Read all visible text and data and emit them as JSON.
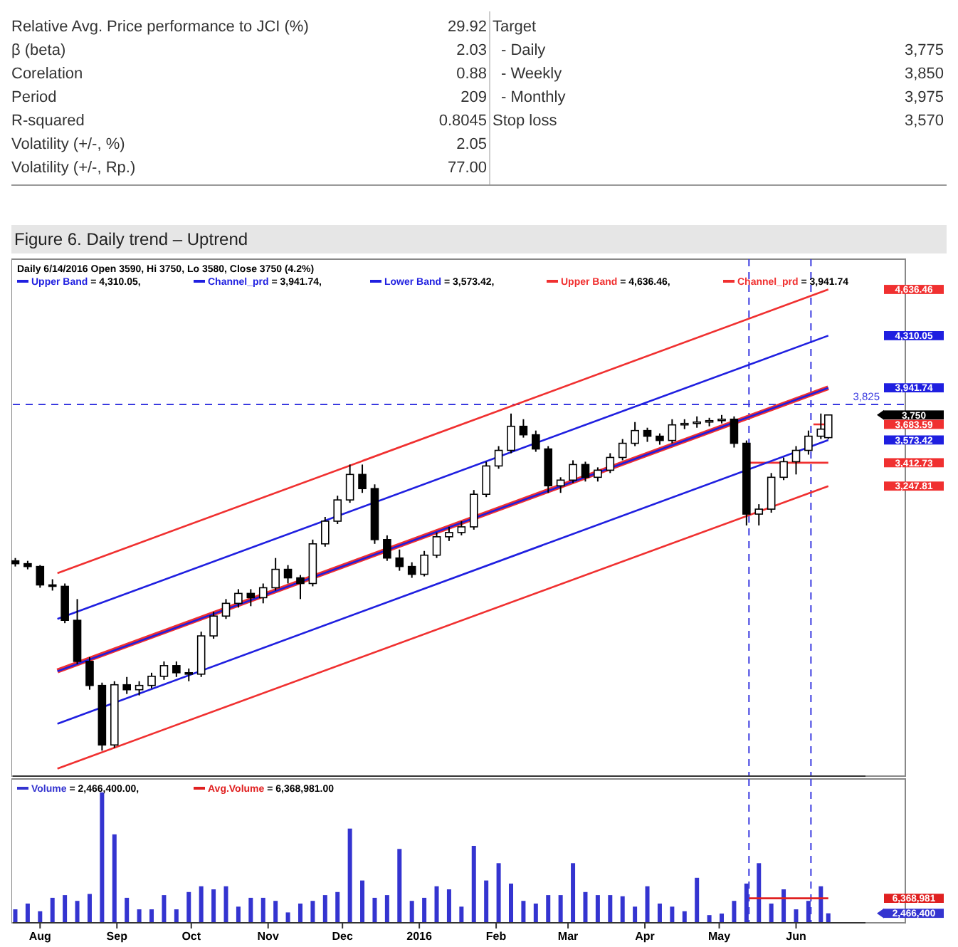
{
  "chart_data": [
    {
      "type": "other",
      "annotations": [
        "Relative Avg. Price performance to JCI (%)",
        "29.92",
        "β (beta)",
        "2.03",
        "Corelation",
        "0.88",
        "Period",
        "209",
        "R-squared",
        "0.8045",
        "Volatility (+/-, %)",
        "2.05",
        "Volatility (+/-, Rp.)",
        "77.00",
        "Target",
        "-   Daily",
        "3,775",
        "-   Weekly",
        "3,850",
        "-   Monthly",
        "3,975",
        "Stop loss",
        "3,570"
      ]
    },
    {
      "type": "candlestick",
      "title": "Figure 6. Daily trend – Uptrend",
      "subtitle": "Daily 6/14/2016 Open 3590, Hi 3750, Lo 3580, Close 3750 (4.2%)",
      "legend": "top left",
      "tick_labels": "y",
      "annotations": [
        "= 4,310.05,",
        "= 3,941.74,",
        "= 3,573.42,",
        "= 4,636.46,",
        "= 3,941.74"
      ],
      "yticks": [
        {
          "value": 4636.46,
          "label": "4,636.46"
        },
        {
          "value": 4310.05,
          "label": "4,310.05"
        },
        {
          "value": 3941.74,
          "label": "3,941.74"
        },
        {
          "value": 3750,
          "label": "3,750"
        },
        {
          "value": 3683.59,
          "label": "3,683.59"
        },
        {
          "value": 3573.42,
          "label": "3,573.42"
        },
        {
          "value": 3412.73,
          "label": "3,412.73"
        },
        {
          "value": 3247.81,
          "label": "3,247.81"
        }
      ],
      "xlim": [
        "2015-07-21",
        "2016-06-29"
      ],
      "ylim": [
        1200,
        4850
      ],
      "x": [
        "2015-07-22",
        "2015-07-27",
        "2015-08-01",
        "2015-08-06",
        "2015-08-11",
        "2015-08-16",
        "2015-08-21",
        "2015-08-26",
        "2015-08-31",
        "2015-09-05",
        "2015-09-10",
        "2015-09-15",
        "2015-09-20",
        "2015-09-25",
        "2015-09-30",
        "2015-10-05",
        "2015-10-10",
        "2015-10-15",
        "2015-10-20",
        "2015-10-25",
        "2015-10-30",
        "2015-11-04",
        "2015-11-09",
        "2015-11-14",
        "2015-11-19",
        "2015-11-24",
        "2015-11-29",
        "2015-12-04",
        "2015-12-09",
        "2015-12-14",
        "2015-12-19",
        "2015-12-24",
        "2015-12-29",
        "2016-01-03",
        "2016-01-08",
        "2016-01-13",
        "2016-01-18",
        "2016-01-23",
        "2016-01-28",
        "2016-02-02",
        "2016-02-07",
        "2016-02-12",
        "2016-02-17",
        "2016-02-22",
        "2016-02-27",
        "2016-03-03",
        "2016-03-08",
        "2016-03-13",
        "2016-03-18",
        "2016-03-23",
        "2016-03-28",
        "2016-04-02",
        "2016-04-07",
        "2016-04-12",
        "2016-04-17",
        "2016-04-22",
        "2016-04-27",
        "2016-05-02",
        "2016-05-07",
        "2016-05-12",
        "2016-05-17",
        "2016-05-22",
        "2016-05-27",
        "2016-06-01",
        "2016-06-06",
        "2016-06-11",
        "2016-06-14"
      ],
      "ohlc": [
        [
          2720,
          2740,
          2680,
          2700
        ],
        [
          2700,
          2720,
          2660,
          2680
        ],
        [
          2680,
          2690,
          2530,
          2550
        ],
        [
          2550,
          2590,
          2510,
          2540
        ],
        [
          2540,
          2560,
          2280,
          2300
        ],
        [
          2300,
          2450,
          1990,
          2010
        ],
        [
          2010,
          2040,
          1810,
          1840
        ],
        [
          1840,
          1860,
          1380,
          1420
        ],
        [
          1420,
          1870,
          1400,
          1845
        ],
        [
          1845,
          1900,
          1780,
          1810
        ],
        [
          1810,
          1870,
          1770,
          1840
        ],
        [
          1840,
          1930,
          1820,
          1905
        ],
        [
          1905,
          2010,
          1880,
          1980
        ],
        [
          1980,
          2010,
          1900,
          1930
        ],
        [
          1930,
          1960,
          1870,
          1920
        ],
        [
          1920,
          2220,
          1900,
          2190
        ],
        [
          2190,
          2360,
          2170,
          2330
        ],
        [
          2330,
          2450,
          2310,
          2420
        ],
        [
          2420,
          2520,
          2390,
          2490
        ],
        [
          2490,
          2520,
          2400,
          2460
        ],
        [
          2460,
          2560,
          2420,
          2530
        ],
        [
          2530,
          2740,
          2510,
          2660
        ],
        [
          2660,
          2690,
          2560,
          2600
        ],
        [
          2600,
          2620,
          2450,
          2560
        ],
        [
          2560,
          2870,
          2540,
          2840
        ],
        [
          2840,
          3030,
          2820,
          3000
        ],
        [
          3000,
          3180,
          2980,
          3150
        ],
        [
          3150,
          3400,
          3130,
          3330
        ],
        [
          3330,
          3400,
          3200,
          3230
        ],
        [
          3230,
          3260,
          2840,
          2870
        ],
        [
          2870,
          2900,
          2720,
          2740
        ],
        [
          2740,
          2800,
          2650,
          2680
        ],
        [
          2680,
          2710,
          2600,
          2625
        ],
        [
          2625,
          2790,
          2610,
          2760
        ],
        [
          2760,
          2920,
          2740,
          2890
        ],
        [
          2890,
          2960,
          2860,
          2920
        ],
        [
          2920,
          3000,
          2900,
          2960
        ],
        [
          2960,
          3220,
          2940,
          3190
        ],
        [
          3190,
          3420,
          3170,
          3390
        ],
        [
          3390,
          3530,
          3370,
          3500
        ],
        [
          3500,
          3760,
          3480,
          3670
        ],
        [
          3670,
          3720,
          3590,
          3610
        ],
        [
          3610,
          3640,
          3490,
          3510
        ],
        [
          3510,
          3530,
          3200,
          3250
        ],
        [
          3250,
          3310,
          3200,
          3290
        ],
        [
          3290,
          3430,
          3270,
          3400
        ],
        [
          3400,
          3420,
          3280,
          3310
        ],
        [
          3310,
          3380,
          3280,
          3360
        ],
        [
          3360,
          3480,
          3340,
          3450
        ],
        [
          3450,
          3580,
          3430,
          3550
        ],
        [
          3550,
          3700,
          3530,
          3640
        ],
        [
          3640,
          3660,
          3560,
          3600
        ],
        [
          3600,
          3620,
          3540,
          3570
        ],
        [
          3570,
          3720,
          3550,
          3680
        ],
        [
          3680,
          3720,
          3650,
          3690
        ],
        [
          3690,
          3740,
          3660,
          3700
        ],
        [
          3700,
          3730,
          3670,
          3710
        ],
        [
          3710,
          3750,
          3690,
          3720
        ],
        [
          3720,
          3740,
          3520,
          3550
        ],
        [
          3550,
          3570,
          2970,
          3050
        ],
        [
          3050,
          3120,
          2970,
          3085
        ],
        [
          3085,
          3340,
          3060,
          3310
        ],
        [
          3310,
          3450,
          3290,
          3420
        ],
        [
          3420,
          3530,
          3330,
          3500
        ],
        [
          3500,
          3640,
          3470,
          3600
        ],
        [
          3600,
          3760,
          3580,
          3650
        ],
        [
          3590,
          3750,
          3580,
          3750
        ]
      ],
      "series": [
        {
          "name": "Upper Band",
          "type": "line",
          "color": "#1f1fe0",
          "x": [
            "2015-08-08",
            "2016-06-14"
          ],
          "values": [
            2310,
            4310.05
          ]
        },
        {
          "name": "Channel_prd",
          "type": "line",
          "color": "#1f1fe0",
          "x": [
            "2015-08-08",
            "2016-06-14"
          ],
          "values": [
            1940,
            3941.74
          ]
        },
        {
          "name": "Lower Band",
          "type": "line",
          "color": "#1f1fe0",
          "x": [
            "2015-08-08",
            "2016-06-14"
          ],
          "values": [
            1570,
            3573.42
          ]
        },
        {
          "name": "Upper Band",
          "type": "line",
          "color": "#f03030",
          "x": [
            "2015-08-08",
            "2016-06-14"
          ],
          "values": [
            2633,
            4636.46
          ]
        },
        {
          "name": "Channel_prd",
          "type": "line",
          "color": "#f03030",
          "x": [
            "2015-08-08",
            "2016-06-14"
          ],
          "values": [
            1943,
            3941.74
          ]
        },
        {
          "type": "line",
          "color": "#f03030",
          "x": [
            "2015-08-08",
            "2016-06-14"
          ],
          "values": [
            1253,
            3247.81
          ]
        },
        {
          "type": "line",
          "color": "#f03030",
          "x": [
            "2016-05-13",
            "2016-06-14"
          ],
          "values": [
            3412.73,
            3412.73
          ]
        },
        {
          "type": "line",
          "color": "#f03030",
          "x": [
            "2016-06-08",
            "2016-06-14"
          ],
          "values": [
            3683.59,
            3683.59
          ]
        }
      ],
      "ref_lines": [
        {
          "axis": "y",
          "value": 3825,
          "label": "3,825",
          "color": "#3a3ae0",
          "line_style": "dashed"
        },
        {
          "axis": "x",
          "value": "2016-05-13",
          "color": "#3a3ae0",
          "line_style": "dashed"
        },
        {
          "axis": "x",
          "value": "2016-06-07",
          "color": "#3a3ae0",
          "line_style": "dashed"
        }
      ]
    },
    {
      "type": "bar",
      "legend": "top left",
      "annotations": [
        "= 2,466,400.00,",
        "= 6,368,981.00"
      ],
      "yticks": [
        {
          "value": 6368981,
          "label": "6,368,981"
        },
        {
          "value": 2466400,
          "label": "2,466,400"
        }
      ],
      "xlim": [
        "2015-07-21",
        "2016-06-29"
      ],
      "ylim": [
        0,
        37400000
      ],
      "xticks": [
        {
          "value": "2015-08-01",
          "label": "Aug"
        },
        {
          "value": "2015-09-01",
          "label": "Sep"
        },
        {
          "value": "2015-10-01",
          "label": "Oct"
        },
        {
          "value": "2015-11-01",
          "label": "Nov"
        },
        {
          "value": "2015-12-01",
          "label": "Dec"
        },
        {
          "value": "2016-01-01",
          "label": "2016"
        },
        {
          "value": "2016-02-01",
          "label": "Feb"
        },
        {
          "value": "2016-03-01",
          "label": "Mar"
        },
        {
          "value": "2016-04-01",
          "label": "Apr"
        },
        {
          "value": "2016-05-01",
          "label": "May"
        },
        {
          "value": "2016-06-01",
          "label": "Jun"
        }
      ],
      "x": [
        "2015-07-22",
        "2015-07-27",
        "2015-08-01",
        "2015-08-06",
        "2015-08-11",
        "2015-08-16",
        "2015-08-21",
        "2015-08-26",
        "2015-08-31",
        "2015-09-05",
        "2015-09-10",
        "2015-09-15",
        "2015-09-20",
        "2015-09-25",
        "2015-09-30",
        "2015-10-05",
        "2015-10-10",
        "2015-10-15",
        "2015-10-20",
        "2015-10-25",
        "2015-10-30",
        "2015-11-04",
        "2015-11-09",
        "2015-11-14",
        "2015-11-19",
        "2015-11-24",
        "2015-11-29",
        "2015-12-04",
        "2015-12-09",
        "2015-12-14",
        "2015-12-19",
        "2015-12-24",
        "2015-12-29",
        "2016-01-03",
        "2016-01-08",
        "2016-01-13",
        "2016-01-18",
        "2016-01-23",
        "2016-01-28",
        "2016-02-02",
        "2016-02-07",
        "2016-02-12",
        "2016-02-17",
        "2016-02-22",
        "2016-02-27",
        "2016-03-03",
        "2016-03-08",
        "2016-03-13",
        "2016-03-18",
        "2016-03-23",
        "2016-03-28",
        "2016-04-02",
        "2016-04-07",
        "2016-04-12",
        "2016-04-17",
        "2016-04-22",
        "2016-04-27",
        "2016-05-02",
        "2016-05-07",
        "2016-05-12",
        "2016-05-17",
        "2016-05-22",
        "2016-05-27",
        "2016-06-01",
        "2016-06-06",
        "2016-06-11",
        "2016-06-14"
      ],
      "series": [
        {
          "name": "Volume",
          "color": "#3434d0",
          "values": [
            3500000,
            5000000,
            3000000,
            6500000,
            7200000,
            5700000,
            7500000,
            33900000,
            23000000,
            6500000,
            3500000,
            3500000,
            7200000,
            3500000,
            8000000,
            9500000,
            8700000,
            9500000,
            4200000,
            6500000,
            6500000,
            5700000,
            2700000,
            5000000,
            5700000,
            7200000,
            8000000,
            24500000,
            11000000,
            6500000,
            7200000,
            19200000,
            5700000,
            6500000,
            9500000,
            8700000,
            4200000,
            20000000,
            11000000,
            15500000,
            10200000,
            5700000,
            5000000,
            7200000,
            7200000,
            15500000,
            8000000,
            7200000,
            7200000,
            6900000,
            4200000,
            9500000,
            5000000,
            4200000,
            3000000,
            11700000,
            2000000,
            2400000,
            5700000,
            10200000,
            15500000,
            5000000,
            8700000,
            3500000,
            5700000,
            9500000,
            2466400
          ]
        },
        {
          "name": "Avg.Volume",
          "type": "line",
          "color": "#e02020",
          "x": [
            "2016-05-13",
            "2016-06-14"
          ],
          "values": [
            6368981,
            6368981
          ]
        }
      ],
      "ref_lines": [
        {
          "axis": "x",
          "value": "2016-05-13",
          "color": "#3a3ae0",
          "line_style": "dashed"
        },
        {
          "axis": "x",
          "value": "2016-06-07",
          "color": "#3a3ae0",
          "line_style": "dashed"
        }
      ]
    }
  ]
}
